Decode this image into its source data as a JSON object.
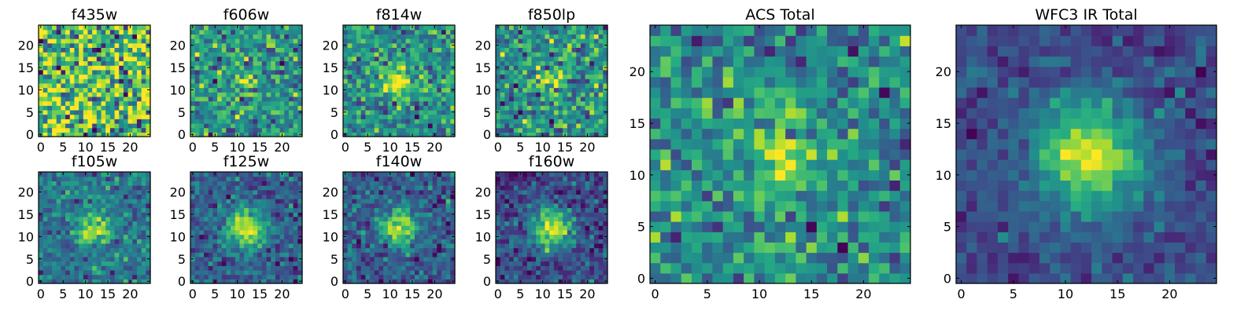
{
  "chart_data": {
    "type": "heatmap",
    "colormap": [
      "#440154",
      "#472d7b",
      "#3b528b",
      "#2c728e",
      "#21918c",
      "#28ae80",
      "#5ec962",
      "#addc30",
      "#fde725"
    ],
    "grid_size": 25,
    "panels": [
      {
        "title": "f435w",
        "center": [
          12,
          12
        ],
        "peak": 0.12,
        "sigma": 2.5,
        "noise": 0.3,
        "background": 0.7,
        "xticks": [
          "0",
          "5",
          "10",
          "15",
          "20"
        ],
        "yticks": [
          "0",
          "5",
          "10",
          "15",
          "20"
        ]
      },
      {
        "title": "f606w",
        "center": [
          12,
          12
        ],
        "peak": 0.35,
        "sigma": 2.2,
        "noise": 0.18,
        "background": 0.5,
        "xticks": [
          "0",
          "5",
          "10",
          "15",
          "20"
        ],
        "yticks": [
          "0",
          "5",
          "10",
          "15",
          "20"
        ]
      },
      {
        "title": "f814w",
        "center": [
          12,
          12
        ],
        "peak": 0.45,
        "sigma": 2.2,
        "noise": 0.17,
        "background": 0.5,
        "xticks": [
          "0",
          "5",
          "10",
          "15",
          "20"
        ],
        "yticks": [
          "0",
          "5",
          "10",
          "15",
          "20"
        ]
      },
      {
        "title": "f850lp",
        "center": [
          12,
          12
        ],
        "peak": 0.35,
        "sigma": 2.3,
        "noise": 0.18,
        "background": 0.5,
        "xticks": [
          "0",
          "5",
          "10",
          "15",
          "20"
        ],
        "yticks": [
          "0",
          "5",
          "10",
          "15",
          "20"
        ]
      },
      {
        "title": "f105w",
        "center": [
          12,
          12
        ],
        "peak": 0.55,
        "sigma": 2.6,
        "noise": 0.12,
        "background": 0.38,
        "xticks": [
          "0",
          "5",
          "10",
          "15",
          "20"
        ],
        "yticks": [
          "0",
          "5",
          "10",
          "15",
          "20"
        ]
      },
      {
        "title": "f125w",
        "center": [
          12,
          12
        ],
        "peak": 0.65,
        "sigma": 3.2,
        "noise": 0.12,
        "background": 0.3,
        "xticks": [
          "0",
          "5",
          "10",
          "15",
          "20"
        ],
        "yticks": [
          "0",
          "5",
          "10",
          "15",
          "20"
        ]
      },
      {
        "title": "f140w",
        "center": [
          12,
          12
        ],
        "peak": 0.6,
        "sigma": 3.0,
        "noise": 0.12,
        "background": 0.28,
        "xticks": [
          "0",
          "5",
          "10",
          "15",
          "20"
        ],
        "yticks": [
          "0",
          "5",
          "10",
          "15",
          "20"
        ]
      },
      {
        "title": "f160w",
        "center": [
          12,
          12
        ],
        "peak": 0.7,
        "sigma": 3.2,
        "noise": 0.12,
        "background": 0.22,
        "xticks": [
          "0",
          "5",
          "10",
          "15",
          "20"
        ],
        "yticks": [
          "0",
          "5",
          "10",
          "15",
          "20"
        ]
      },
      {
        "title": "ACS Total",
        "center": [
          12,
          12
        ],
        "peak": 0.4,
        "sigma": 2.4,
        "noise": 0.16,
        "background": 0.48,
        "xticks": [
          "0",
          "5",
          "10",
          "15",
          "20"
        ],
        "yticks": [
          "0",
          "5",
          "10",
          "15",
          "20"
        ]
      },
      {
        "title": "WFC3 IR Total",
        "center": [
          12,
          12
        ],
        "peak": 0.72,
        "sigma": 3.6,
        "noise": 0.08,
        "background": 0.22,
        "xticks": [
          "0",
          "5",
          "10",
          "15",
          "20"
        ],
        "yticks": [
          "0",
          "5",
          "10",
          "15",
          "20"
        ]
      }
    ],
    "xlim": [
      0,
      24
    ],
    "ylim": [
      0,
      24
    ]
  }
}
